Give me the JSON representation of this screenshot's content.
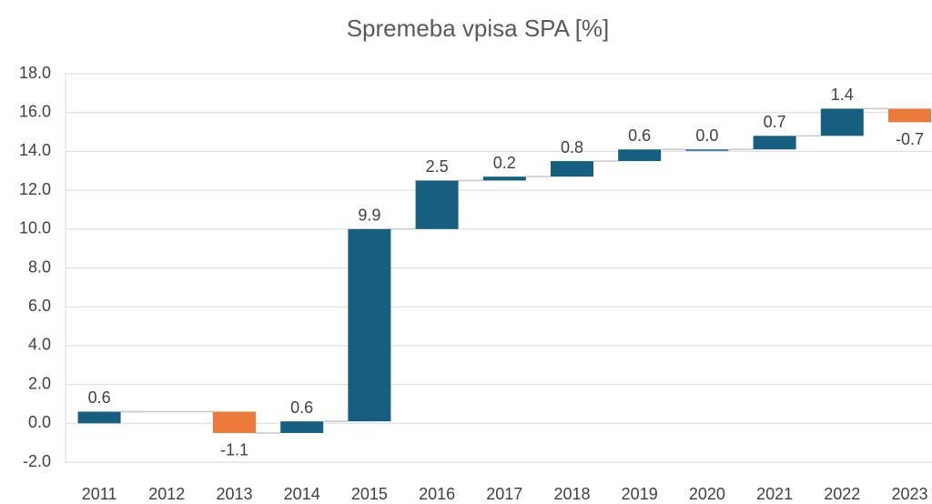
{
  "chart_data": {
    "type": "waterfall",
    "title": "Spremeba vpisa SPA [%]",
    "categories": [
      "2011",
      "2012",
      "2013",
      "2014",
      "2015",
      "2016",
      "2017",
      "2018",
      "2019",
      "2020",
      "2021",
      "2022",
      "2023"
    ],
    "values": [
      0.6,
      null,
      -1.1,
      0.6,
      9.9,
      2.5,
      0.2,
      0.8,
      0.6,
      0.0,
      0.7,
      1.4,
      -0.7
    ],
    "value_labels": [
      "0.6",
      null,
      "-1.1",
      "0.6",
      "9.9",
      "2.5",
      "0.2",
      "0.8",
      "0.6",
      "0.0",
      "0.7",
      "1.4",
      "-0.7"
    ],
    "increase_color": "#175f80",
    "decrease_color": "#ec7a3a",
    "ylim": [
      -2,
      18
    ],
    "yticks": [
      {
        "value": -2,
        "label": "-2.0"
      },
      {
        "value": 0,
        "label": "0.0"
      },
      {
        "value": 2,
        "label": "2.0"
      },
      {
        "value": 4,
        "label": "4.0"
      },
      {
        "value": 6,
        "label": "6.0"
      },
      {
        "value": 8,
        "label": "8.0"
      },
      {
        "value": 10,
        "label": "10.0"
      },
      {
        "value": 12,
        "label": "12.0"
      },
      {
        "value": 14,
        "label": "14.0"
      },
      {
        "value": 16,
        "label": "16.0"
      },
      {
        "value": 18,
        "label": "18.0"
      }
    ],
    "grid": true
  }
}
